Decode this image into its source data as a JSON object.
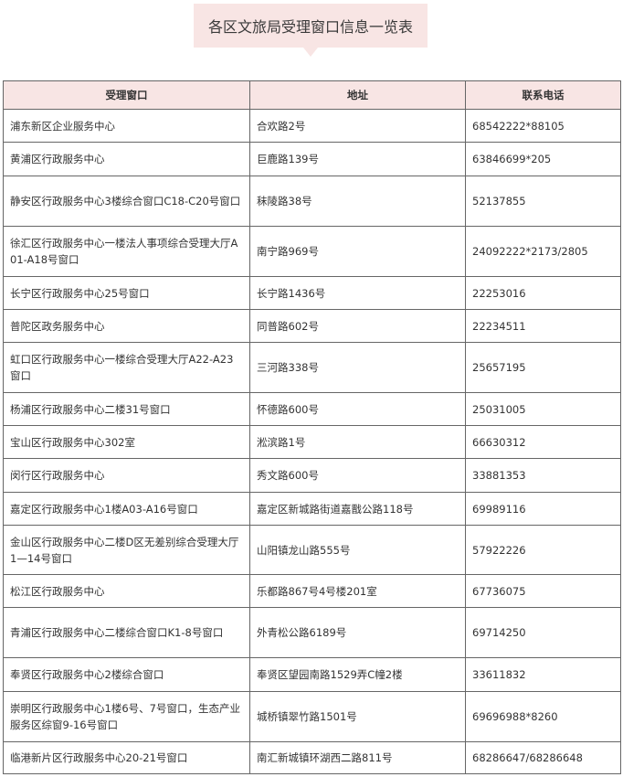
{
  "header": {
    "title": "各区文旅局受理窗口信息一览表"
  },
  "table": {
    "columns": [
      "受理窗口",
      "地址",
      "联系电话"
    ],
    "rows": [
      [
        "浦东新区企业服务中心",
        "合欢路2号",
        "68542222*88105"
      ],
      [
        "黄浦区行政服务中心",
        "巨鹿路139号",
        "63846699*205"
      ],
      [
        "静安区行政服务中心3楼综合窗口C18-C20号窗口",
        "秣陵路38号",
        "52137855"
      ],
      [
        "徐汇区行政服务中心一楼法人事项综合受理大厅A01-A18号窗口",
        "南宁路969号",
        "24092222*2173/2805"
      ],
      [
        "长宁区行政服务中心25号窗口",
        "长宁路1436号",
        "22253016"
      ],
      [
        "普陀区政务服务中心",
        "同普路602号",
        "22234511"
      ],
      [
        "虹口区行政服务中心一楼综合受理大厅A22-A23窗口",
        "三河路338号",
        "25657195"
      ],
      [
        "杨浦区行政服务中心二楼31号窗口",
        "怀德路600号",
        "25031005"
      ],
      [
        "宝山区行政服务中心302室",
        "淞滨路1号",
        "66630312"
      ],
      [
        "闵行区行政服务中心",
        "秀文路600号",
        "33881353"
      ],
      [
        "嘉定区行政服务中心1楼A03-A16号窗口",
        "嘉定区新城路街道嘉戬公路118号",
        "69989116"
      ],
      [
        "金山区行政服务中心二楼D区无差别综合受理大厅1—14号窗口",
        "山阳镇龙山路555号",
        "57922226"
      ],
      [
        "松江区行政服务中心",
        "乐都路867号4号楼201室",
        "67736075"
      ],
      [
        "青浦区行政服务中心二楼综合窗口K1-8号窗口",
        "外青松公路6189号",
        "69714250"
      ],
      [
        "奉贤区行政服务中心2楼综合窗口",
        "奉贤区望园南路1529弄C幢2楼",
        "33611832"
      ],
      [
        "崇明区行政服务中心1楼6号、7号窗口，生态产业服务区综窗9-16号窗口",
        "城桥镇翠竹路1501号",
        "69696988*8260"
      ],
      [
        "临港新片区行政服务中心20-21号窗口",
        "南汇新城镇环湖西二路811号",
        "68286647/68286648"
      ]
    ]
  }
}
